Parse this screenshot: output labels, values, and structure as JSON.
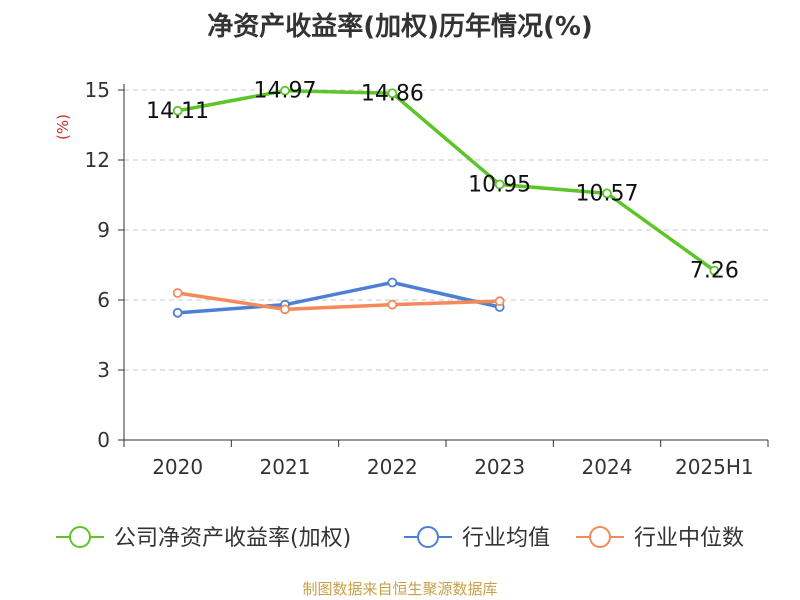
{
  "chart_data": {
    "type": "line",
    "title": "净资产收益率(加权)历年情况(%)",
    "ylabel": "(%)",
    "xlabel": "",
    "categories": [
      "2020",
      "2021",
      "2022",
      "2023",
      "2024",
      "2025H1"
    ],
    "yticks": [
      "0",
      "3",
      "6",
      "9",
      "12",
      "15"
    ],
    "ylim": [
      0,
      15
    ],
    "grid": true,
    "legend_position": "bottom",
    "series": [
      {
        "name": "公司净资产收益率(加权)",
        "color": "#5dc528",
        "values": [
          14.11,
          14.97,
          14.86,
          10.95,
          10.57,
          7.26
        ],
        "labels": [
          "14.11",
          "14.97",
          "14.86",
          "10.95",
          "10.57",
          "7.26"
        ]
      },
      {
        "name": "行业均值",
        "color": "#4f7fd4",
        "values": [
          5.45,
          5.8,
          6.75,
          5.7,
          null,
          null
        ]
      },
      {
        "name": "行业中位数",
        "color": "#f38a5a",
        "values": [
          6.3,
          5.6,
          5.8,
          5.95,
          null,
          null
        ]
      }
    ],
    "ylabel_color": "#d0302a"
  },
  "source": "制图数据来自恒生聚源数据库"
}
